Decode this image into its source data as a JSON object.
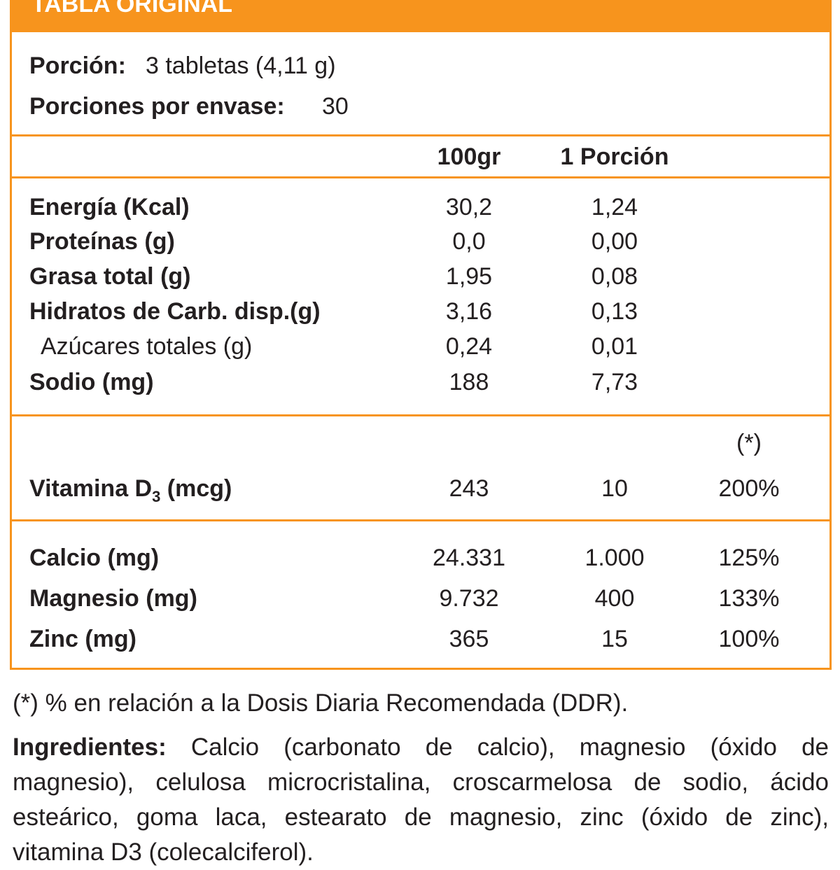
{
  "header": {
    "title": "TABLA ORIGINAL"
  },
  "serving": {
    "label": "Porción:",
    "value": "3 tabletas (4,11 g)"
  },
  "servings": {
    "label": "Porciones por envase:",
    "value": "30"
  },
  "table": {
    "columns": [
      "100gr",
      "1 Porción",
      "(*)"
    ],
    "rows": [
      [
        "Energía (Kcal)",
        "30,2",
        "1,24"
      ],
      [
        "Proteínas (g)",
        "0,0",
        "0,00"
      ],
      [
        "Grasa total (g)",
        "1,95",
        "0,08"
      ],
      [
        "Hidratos de Carb. disp.(g)",
        "3,16",
        "0,13"
      ],
      [
        "Azúcares totales (g)",
        "0,24",
        "0,01"
      ],
      [
        "Sodio (mg)",
        "188",
        "7,73"
      ]
    ],
    "vitamin": {
      "label": [
        "Vitamina D",
        "3",
        " (mcg)"
      ],
      "values": [
        "243",
        "10",
        "200%"
      ]
    },
    "minerals": [
      [
        "Calcio (mg)",
        "24.331",
        "1.000",
        "125%"
      ],
      [
        "Magnesio (mg)",
        "9.732",
        "400",
        "133%"
      ],
      [
        "Zinc (mg)",
        "365",
        "15",
        "100%"
      ]
    ]
  },
  "footnote": "(*) % en relación a la Dosis Diaria Recomendada (DDR).",
  "ingredients": {
    "label": "Ingredientes:",
    "text": " Calcio (carbonato de calcio), magnesio (óxido de magnesio), celulosa microcristalina, croscarmelosa de sodio, ácido esteárico, goma laca, estearato de magnesio, zinc (óxido de zinc), vitamina D3 (colecalciferol)."
  }
}
